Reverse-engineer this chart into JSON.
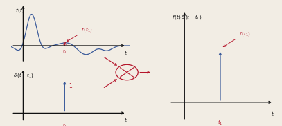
{
  "bg_color": "#f2ede4",
  "blue_color": "#3a5a9a",
  "red_color": "#b5162b",
  "dark_color": "#111111",
  "t1": 0.42,
  "panel1": [
    0.04,
    0.5,
    0.42,
    0.48
  ],
  "panel2": [
    0.04,
    0.03,
    0.42,
    0.44
  ],
  "panel_mid": [
    0.36,
    0.28,
    0.18,
    0.28
  ],
  "panel3": [
    0.6,
    0.04,
    0.38,
    0.9
  ],
  "wave_xlim": [
    -0.12,
    1.08
  ],
  "wave_ylim": [
    -0.45,
    1.12
  ],
  "imp_xlim": [
    -0.12,
    1.08
  ],
  "imp_ylim": [
    -0.22,
    1.12
  ],
  "res_xlim": [
    -0.18,
    1.08
  ],
  "res_ylim": [
    -0.22,
    1.12
  ]
}
